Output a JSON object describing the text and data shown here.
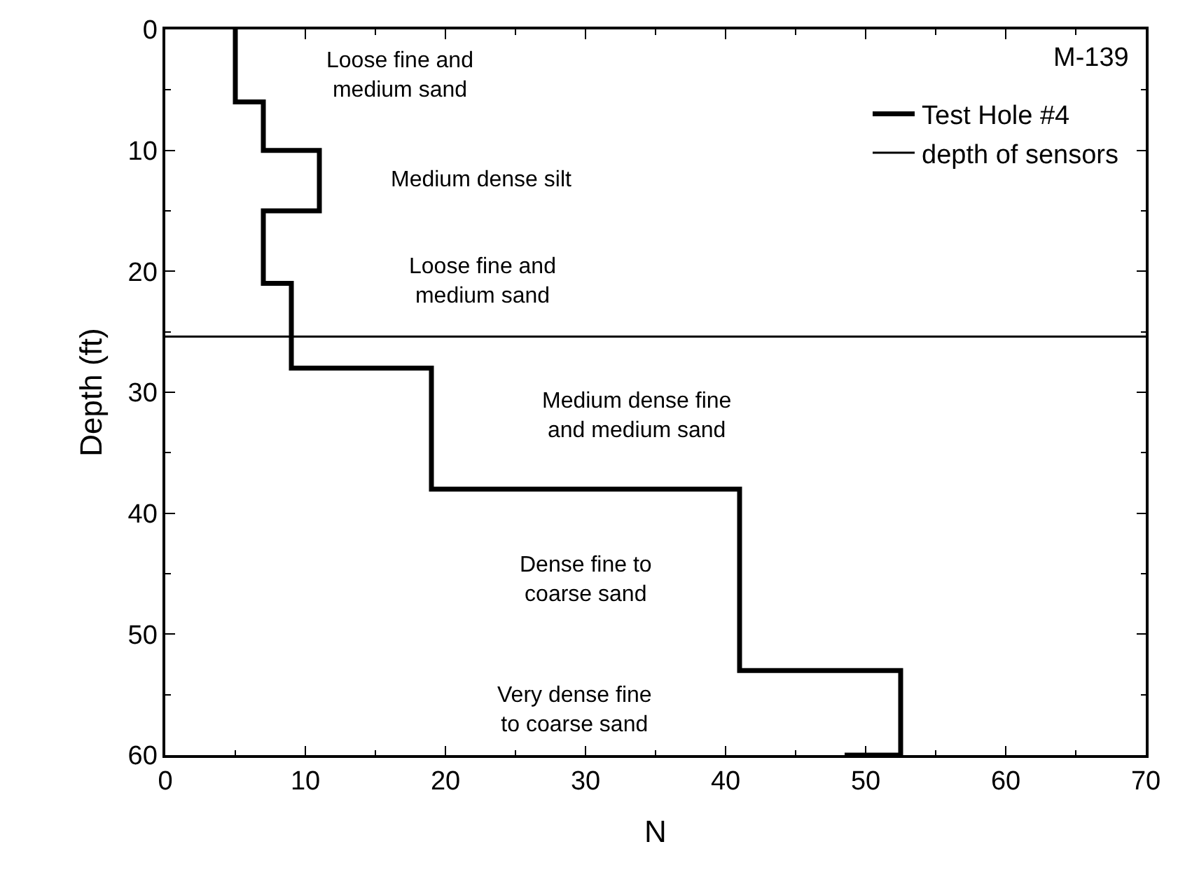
{
  "chart_data": {
    "type": "line",
    "xlabel": "N",
    "ylabel": "Depth (ft)",
    "xlim": [
      0,
      70
    ],
    "xticks": [
      0,
      10,
      20,
      30,
      40,
      50,
      60,
      70
    ],
    "ylim": [
      60,
      0
    ],
    "yticks": [
      0,
      10,
      20,
      30,
      40,
      50,
      60
    ],
    "series": [
      {
        "name": "Test Hole #4",
        "color": "#000000",
        "x": [
          5,
          5,
          7,
          7,
          11,
          11,
          7,
          7,
          9,
          9,
          19,
          19,
          41,
          41,
          52.5,
          52.5,
          48.5
        ],
        "values": [
          0,
          6,
          6,
          10,
          10,
          15,
          15,
          21,
          21,
          28,
          28,
          38,
          38,
          53,
          53,
          60,
          60
        ]
      }
    ],
    "ref_lines": [
      {
        "axis": "y",
        "value": 25.4,
        "label": "depth of sensors",
        "color": "#000000",
        "line_style": "solid"
      }
    ],
    "annotations": [
      "M-139",
      "Loose fine and\nmedium sand",
      "Medium dense silt",
      "Loose fine and\nmedium sand",
      "Medium dense fine\nand medium sand",
      "Dense fine to\ncoarse sand",
      "Very dense fine\nto coarse sand"
    ],
    "legend": "top right",
    "marker": "none",
    "line_style": "solid"
  }
}
